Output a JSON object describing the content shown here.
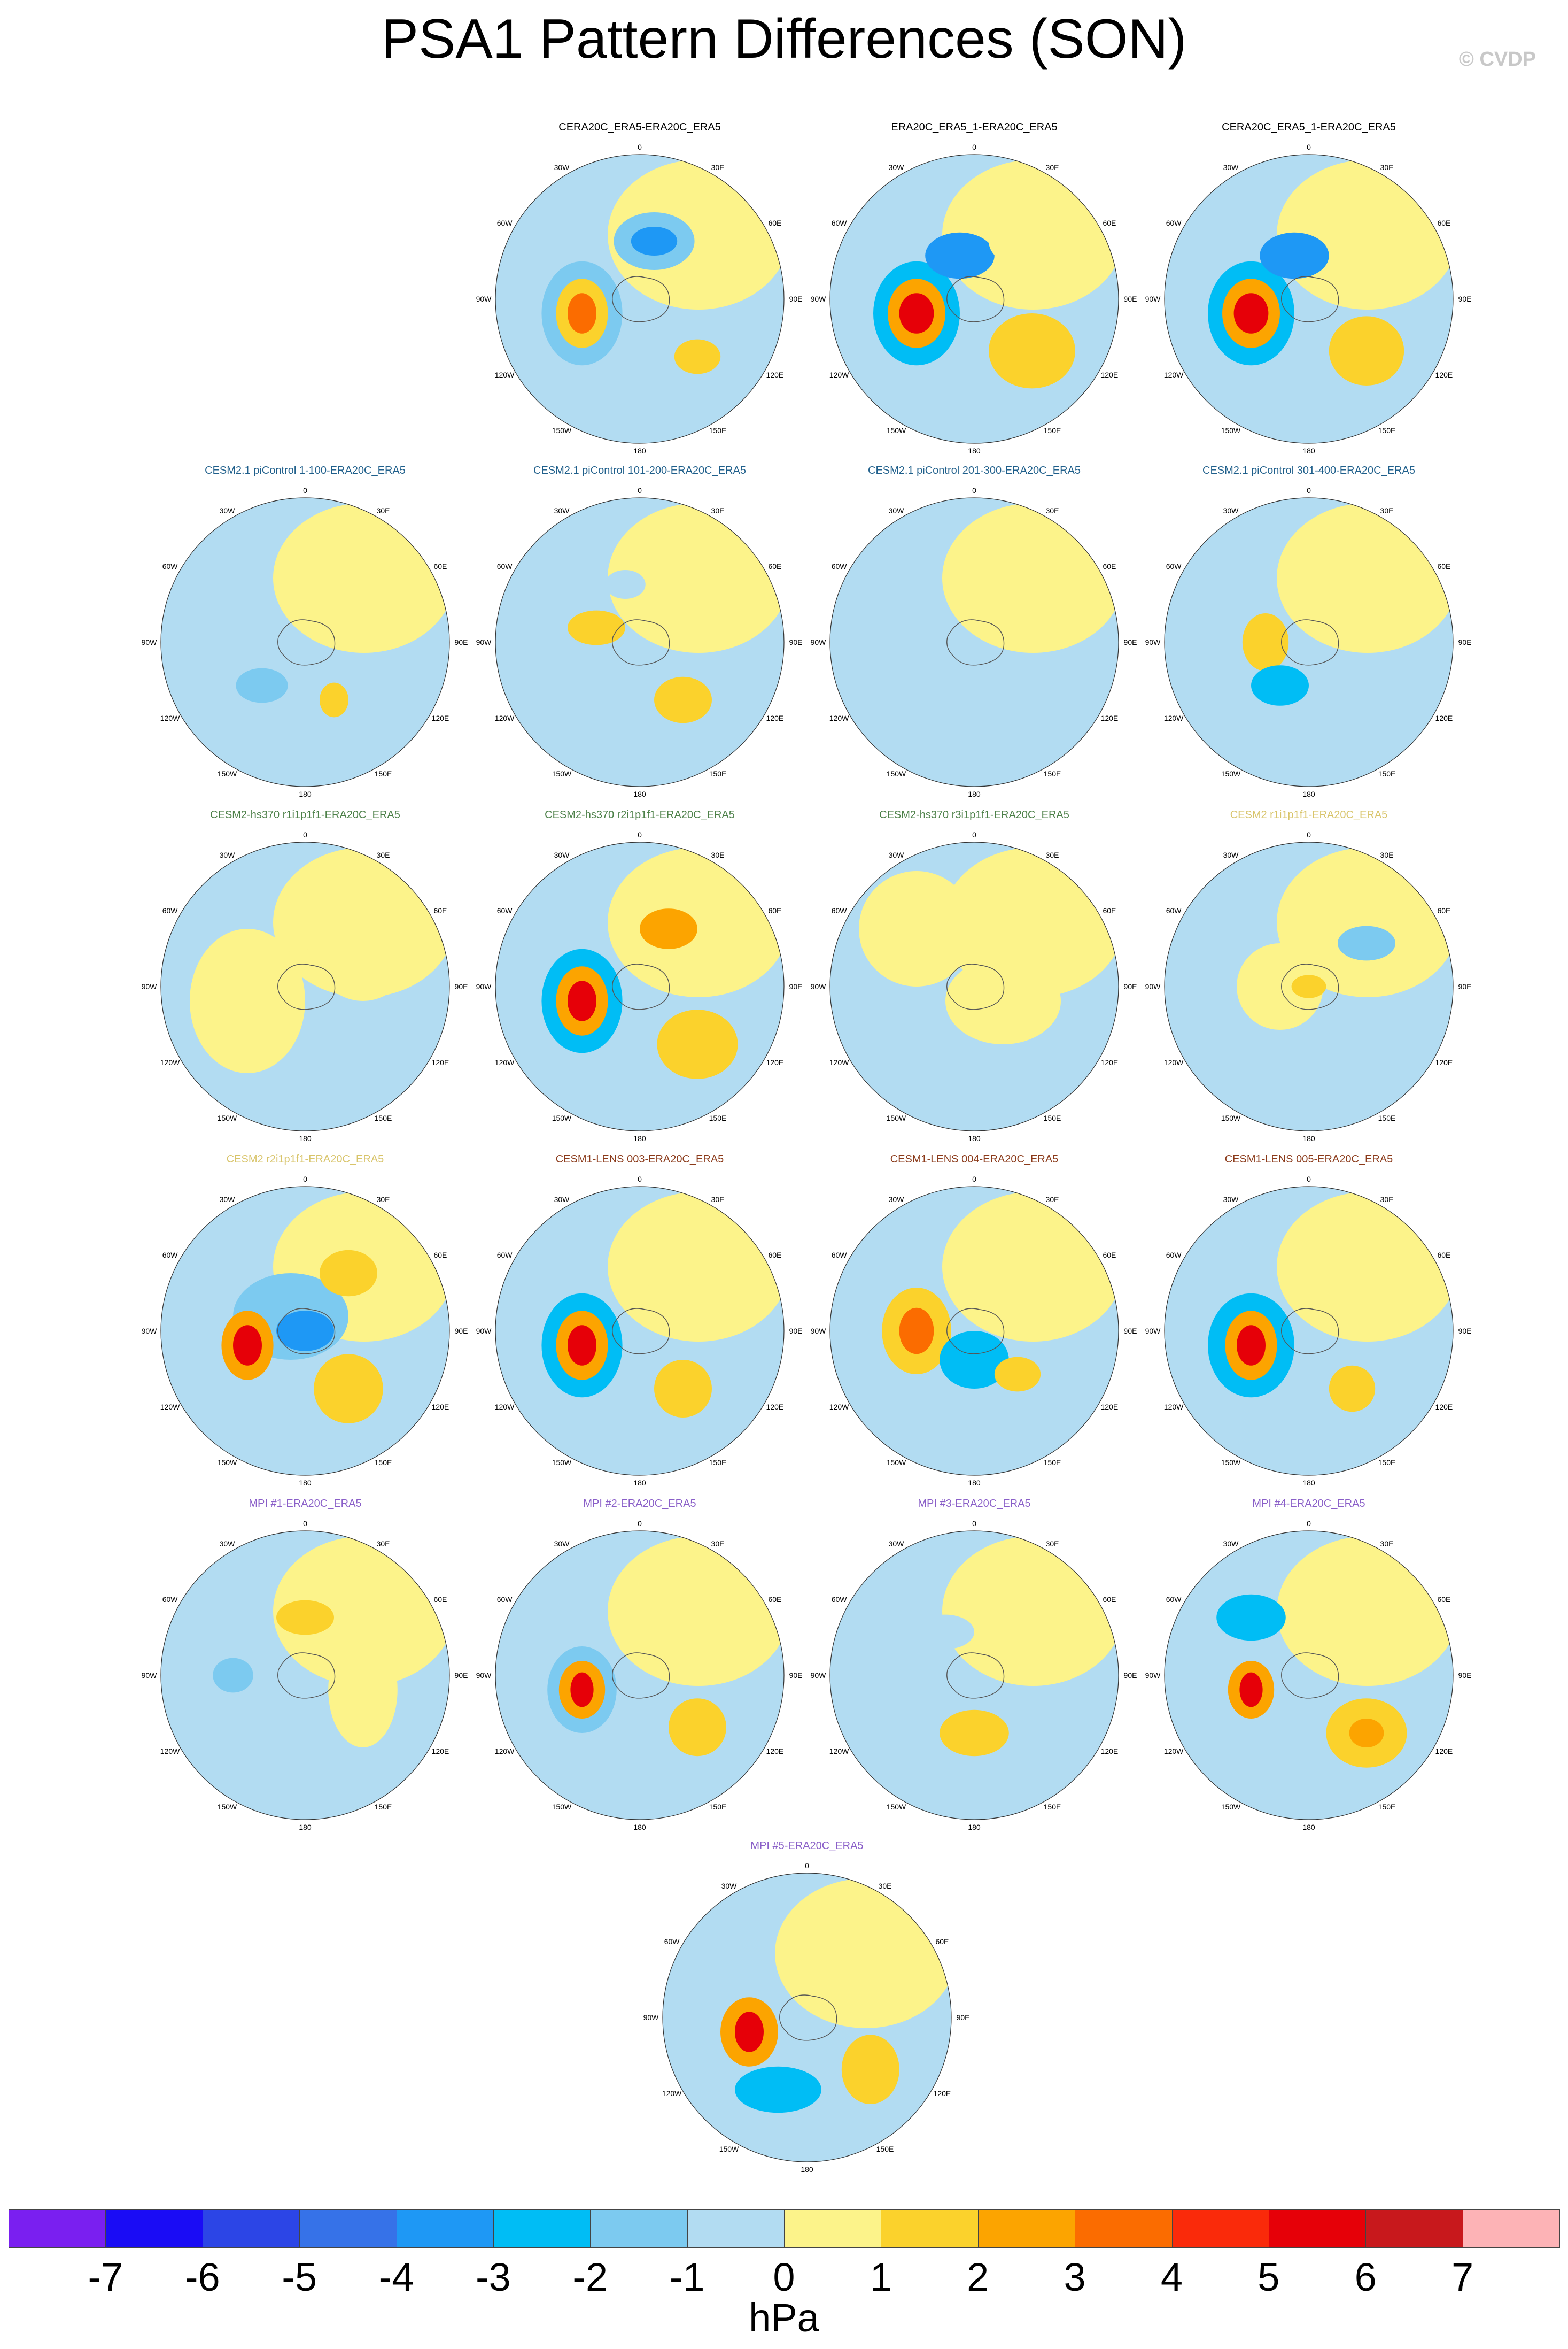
{
  "title": "PSA1 Pattern Differences (SON)",
  "watermark": "© CVDP",
  "longitude_labels": [
    "0",
    "30E",
    "60E",
    "90E",
    "120E",
    "150E",
    "180",
    "150W",
    "120W",
    "90W",
    "60W",
    "30W"
  ],
  "panels": [
    {
      "title": "CERA20C_ERA5-ERA20C_ERA5",
      "title_color": "#000000"
    },
    {
      "title": "ERA20C_ERA5_1-ERA20C_ERA5",
      "title_color": "#000000"
    },
    {
      "title": "CERA20C_ERA5_1-ERA20C_ERA5",
      "title_color": "#000000"
    },
    {
      "title": "CESM2.1 piControl 1-100-ERA20C_ERA5",
      "title_color": "#1f5f8b"
    },
    {
      "title": "CESM2.1 piControl 101-200-ERA20C_ERA5",
      "title_color": "#1f5f8b"
    },
    {
      "title": "CESM2.1 piControl 201-300-ERA20C_ERA5",
      "title_color": "#1f5f8b"
    },
    {
      "title": "CESM2.1 piControl 301-400-ERA20C_ERA5",
      "title_color": "#1f5f8b"
    },
    {
      "title": "CESM2-hs370 r1i1p1f1-ERA20C_ERA5",
      "title_color": "#4c8048"
    },
    {
      "title": "CESM2-hs370 r2i1p1f1-ERA20C_ERA5",
      "title_color": "#4c8048"
    },
    {
      "title": "CESM2-hs370 r3i1p1f1-ERA20C_ERA5",
      "title_color": "#4c8048"
    },
    {
      "title": "CESM2 r1i1p1f1-ERA20C_ERA5",
      "title_color": "#d8c46a"
    },
    {
      "title": "CESM2 r2i1p1f1-ERA20C_ERA5",
      "title_color": "#d8c46a"
    },
    {
      "title": "CESM1-LENS 003-ERA20C_ERA5",
      "title_color": "#8b3a1a"
    },
    {
      "title": "CESM1-LENS 004-ERA20C_ERA5",
      "title_color": "#8b3a1a"
    },
    {
      "title": "CESM1-LENS 005-ERA20C_ERA5",
      "title_color": "#8b3a1a"
    },
    {
      "title": "MPI #1-ERA20C_ERA5",
      "title_color": "#8a5fc8"
    },
    {
      "title": "MPI #2-ERA20C_ERA5",
      "title_color": "#8a5fc8"
    },
    {
      "title": "MPI #3-ERA20C_ERA5",
      "title_color": "#8a5fc8"
    },
    {
      "title": "MPI #4-ERA20C_ERA5",
      "title_color": "#8a5fc8"
    },
    {
      "title": "MPI #5-ERA20C_ERA5",
      "title_color": "#8a5fc8"
    }
  ],
  "colorbar": {
    "units": "hPa",
    "ticks": [
      "-7",
      "-6",
      "-5",
      "-4",
      "-3",
      "-2",
      "-1",
      "0",
      "1",
      "2",
      "3",
      "4",
      "5",
      "6",
      "7"
    ],
    "colors": [
      "#7a1ff0",
      "#1a0cf5",
      "#2c45e6",
      "#3672e8",
      "#1e98f5",
      "#00bdf5",
      "#7ccaf0",
      "#b2dcf2",
      "#fcf38a",
      "#fbd22c",
      "#fca400",
      "#fb6c00",
      "#fa2a0a",
      "#e60008",
      "#c8181c",
      "#fdb3b6"
    ]
  }
}
